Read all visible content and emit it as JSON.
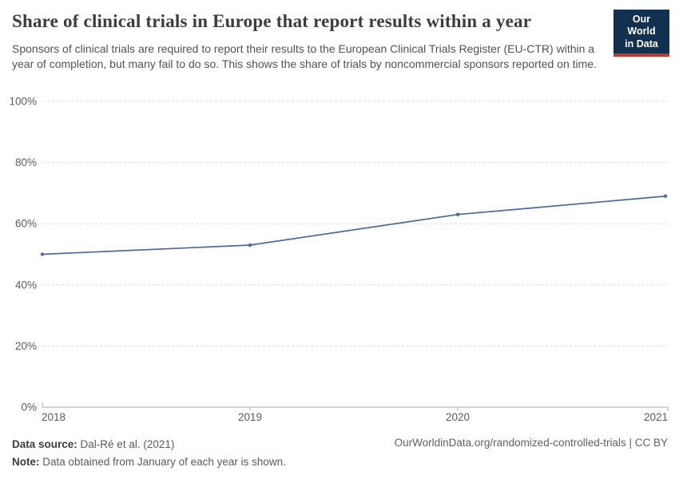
{
  "header": {
    "logo": {
      "line1": "Our World",
      "line2": "in Data",
      "bg_color": "#12304f",
      "accent_color": "#c0392e"
    }
  },
  "chart_data": {
    "type": "line",
    "title": "Share of clinical trials in Europe that report results within a year",
    "subtitle": "Sponsors of clinical trials are required to report their results to the European Clinical Trials Register (EU-CTR) within a year of completion, but many fail to do so. This shows the share of trials by noncommercial sponsors reported on time.",
    "x": [
      2018,
      2019,
      2020,
      2021
    ],
    "values": [
      50,
      53,
      63,
      69
    ],
    "xlabel": "",
    "ylabel": "",
    "ylim": [
      0,
      100
    ],
    "yticks": [
      0,
      20,
      40,
      60,
      80,
      100
    ],
    "ytick_suffix": "%",
    "grid": "horizontal-dashed",
    "legend": "none",
    "line_color": "#4C6A9C",
    "grid_color": "#d9d9d9",
    "axis_color": "#a8a8a8",
    "tick_label_color": "#5b5b5b",
    "markers": true
  },
  "footer": {
    "source_label": "Data source:",
    "source_value": "Dal-Ré et al. (2021)",
    "note_label": "Note:",
    "note_value": "Data obtained from January of each year is shown.",
    "link": "OurWorldinData.org/randomized-controlled-trials | CC BY"
  }
}
